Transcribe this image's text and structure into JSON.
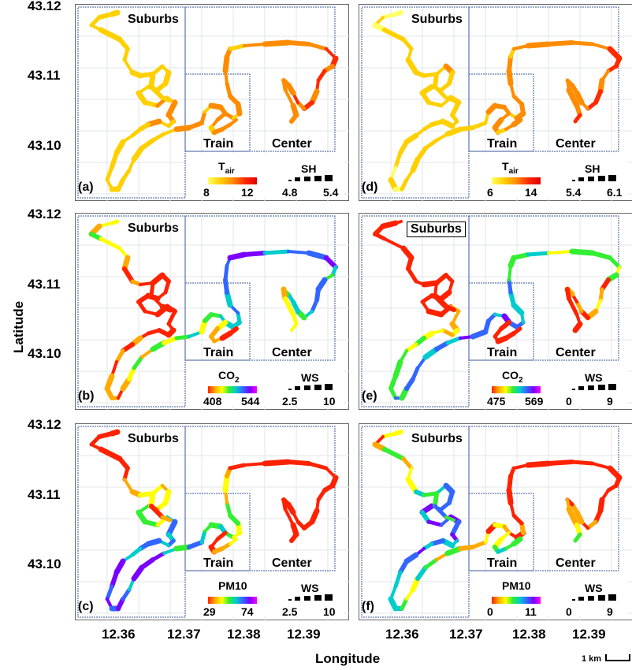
{
  "axes": {
    "ylabel": "Latitude",
    "xlabel": "Longitude",
    "lat_ticks": [
      "43.12",
      "43.11",
      "43.10"
    ],
    "lon_ticks": [
      "12.36",
      "12.37",
      "12.38",
      "12.39"
    ]
  },
  "regions": {
    "suburbs": "Suburbs",
    "train": "Train",
    "center": "Center"
  },
  "scale_bar": "1 km",
  "panels": [
    {
      "id": "a",
      "label": "(a)",
      "color_var": "T",
      "color_sub": "air",
      "color_min": "8",
      "color_max": "12",
      "colormap": "yellow-red",
      "size_var": "SH",
      "size_min": "4.8",
      "size_max": "5.4",
      "boxed_suburbs": false
    },
    {
      "id": "d",
      "label": "(d)",
      "color_var": "T",
      "color_sub": "air",
      "color_min": "6",
      "color_max": "14",
      "colormap": "yellow-red",
      "size_var": "SH",
      "size_min": "5.4",
      "size_max": "6.1",
      "boxed_suburbs": false
    },
    {
      "id": "b",
      "label": "(b)",
      "color_var": "CO",
      "color_sub": "2",
      "color_min": "408",
      "color_max": "544",
      "colormap": "rainbow",
      "size_var": "WS",
      "size_min": "2.5",
      "size_max": "10",
      "boxed_suburbs": false
    },
    {
      "id": "e",
      "label": "(e)",
      "color_var": "CO",
      "color_sub": "2",
      "color_min": "475",
      "color_max": "569",
      "colormap": "rainbow",
      "size_var": "WS",
      "size_min": "0",
      "size_max": "9",
      "boxed_suburbs": true
    },
    {
      "id": "c",
      "label": "(c)",
      "color_var": "PM10",
      "color_sub": "",
      "color_min": "29",
      "color_max": "74",
      "colormap": "rainbow",
      "size_var": "WS",
      "size_min": "2.5",
      "size_max": "10",
      "boxed_suburbs": false
    },
    {
      "id": "f",
      "label": "(f)",
      "color_var": "PM10",
      "color_sub": "",
      "color_min": "0",
      "color_max": "11",
      "colormap": "rainbow",
      "size_var": "WS",
      "size_min": "0",
      "size_max": "9",
      "boxed_suburbs": false
    }
  ],
  "colors": {
    "yellow_red": [
      "#ffff66",
      "#ffd000",
      "#ff8c00",
      "#ff2a00",
      "#e00000"
    ],
    "rainbow": [
      "#ff2200",
      "#ffaa00",
      "#ffff00",
      "#33ee33",
      "#00cccc",
      "#3366ff",
      "#7a00ff",
      "#ff00ff"
    ],
    "region_box": "#3a5a9a",
    "grid": "#e3e6ea"
  }
}
